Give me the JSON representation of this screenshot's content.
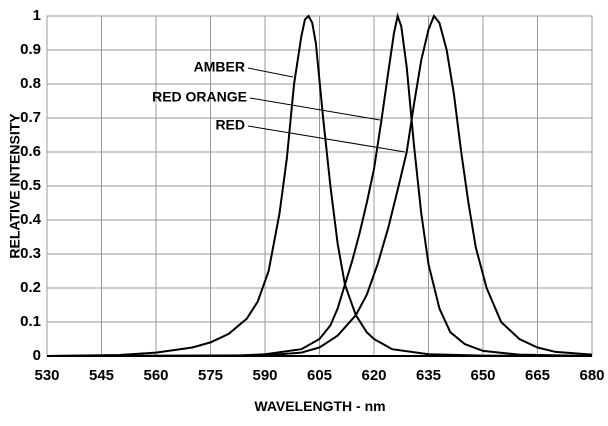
{
  "chart_data": {
    "type": "line",
    "xlabel": "WAVELENGTH - nm",
    "ylabel": "RELATIVE INTENSITY",
    "xlim": [
      530,
      680
    ],
    "ylim": [
      0,
      1
    ],
    "xticks": [
      530,
      545,
      560,
      575,
      590,
      605,
      620,
      635,
      650,
      665,
      680
    ],
    "yticks": [
      0,
      0.1,
      0.2,
      0.3,
      0.4,
      0.5,
      0.6,
      0.7,
      0.8,
      0.9,
      1
    ],
    "grid": true,
    "annotations": [
      "AMBER",
      "RED ORANGE",
      "RED"
    ],
    "series": [
      {
        "color": "#000000",
        "x": [
          530,
          550,
          560,
          570,
          575,
          580,
          585,
          588,
          591,
          594,
          596,
          598,
          600,
          601,
          602,
          603,
          604,
          606,
          608,
          610,
          612,
          615,
          618,
          620,
          625,
          635,
          650,
          680
        ],
        "values": [
          0,
          0.003,
          0.01,
          0.025,
          0.04,
          0.065,
          0.11,
          0.16,
          0.25,
          0.42,
          0.58,
          0.8,
          0.94,
          0.99,
          1,
          0.98,
          0.92,
          0.7,
          0.5,
          0.33,
          0.21,
          0.12,
          0.07,
          0.05,
          0.02,
          0.005,
          0.001,
          0
        ]
      },
      {
        "color": "#000000",
        "x": [
          530,
          580,
          590,
          600,
          605,
          608,
          610,
          612,
          614,
          616,
          618,
          620,
          622,
          624,
          625.5,
          626.5,
          627.5,
          629,
          631,
          633,
          635,
          638,
          641,
          645,
          650,
          660,
          680
        ],
        "values": [
          0,
          0,
          0.005,
          0.02,
          0.05,
          0.09,
          0.14,
          0.21,
          0.28,
          0.36,
          0.45,
          0.55,
          0.69,
          0.84,
          0.95,
          1,
          0.97,
          0.85,
          0.62,
          0.42,
          0.27,
          0.14,
          0.07,
          0.035,
          0.015,
          0.004,
          0
        ]
      },
      {
        "color": "#000000",
        "x": [
          530,
          590,
          600,
          605,
          610,
          615,
          618,
          621,
          624,
          627,
          629,
          631,
          633,
          635,
          636.5,
          638,
          640,
          642,
          644,
          646,
          648,
          651,
          655,
          660,
          665,
          670,
          680
        ],
        "values": [
          0,
          0.002,
          0.01,
          0.025,
          0.06,
          0.12,
          0.18,
          0.27,
          0.38,
          0.51,
          0.6,
          0.74,
          0.87,
          0.96,
          1,
          0.98,
          0.9,
          0.77,
          0.6,
          0.45,
          0.32,
          0.2,
          0.1,
          0.05,
          0.025,
          0.012,
          0.004
        ]
      }
    ]
  }
}
